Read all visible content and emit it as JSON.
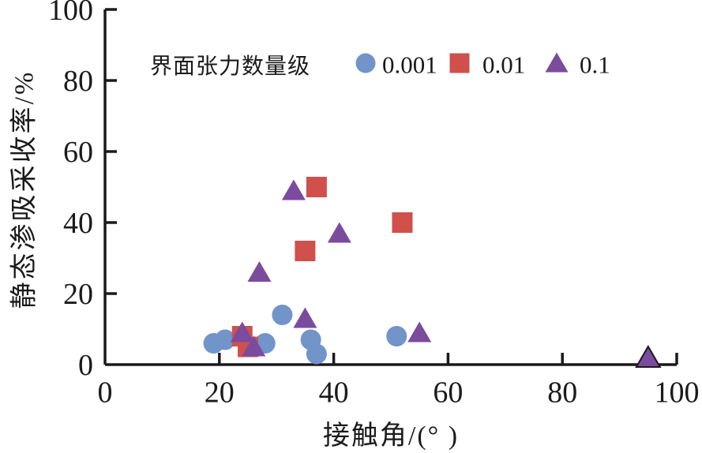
{
  "chart_data": {
    "type": "scatter",
    "title": "",
    "xlabel": "接触角/(°  )",
    "ylabel": "静态渗吸采收率/%",
    "xlim": [
      0,
      100
    ],
    "ylim": [
      0,
      100
    ],
    "x_ticks": [
      0,
      20,
      40,
      60,
      80,
      100
    ],
    "y_ticks": [
      0,
      20,
      40,
      60,
      80,
      100
    ],
    "grid": false,
    "axis_color": "#1a1a1a",
    "legend": {
      "title": "界面张力数量级",
      "position": "top-inside"
    },
    "series": [
      {
        "name": "0.001",
        "marker": "circle",
        "color": "#7194c9",
        "points": [
          [
            19,
            6
          ],
          [
            21,
            7
          ],
          [
            28,
            6
          ],
          [
            31,
            14
          ],
          [
            36,
            7
          ],
          [
            37,
            3
          ],
          [
            51,
            8
          ]
        ]
      },
      {
        "name": "0.01",
        "marker": "square",
        "color": "#d0504b",
        "points": [
          [
            24,
            8
          ],
          [
            25,
            5
          ],
          [
            35,
            32
          ],
          [
            37,
            50
          ],
          [
            52,
            40
          ]
        ]
      },
      {
        "name": "0.1",
        "marker": "triangle",
        "color": "#7b4b9e",
        "points": [
          [
            24,
            9
          ],
          [
            26,
            5
          ],
          [
            27,
            26
          ],
          [
            33,
            49
          ],
          [
            35,
            13
          ],
          [
            41,
            37
          ],
          [
            55,
            9
          ],
          [
            95,
            2,
            "outlined"
          ]
        ]
      }
    ]
  }
}
